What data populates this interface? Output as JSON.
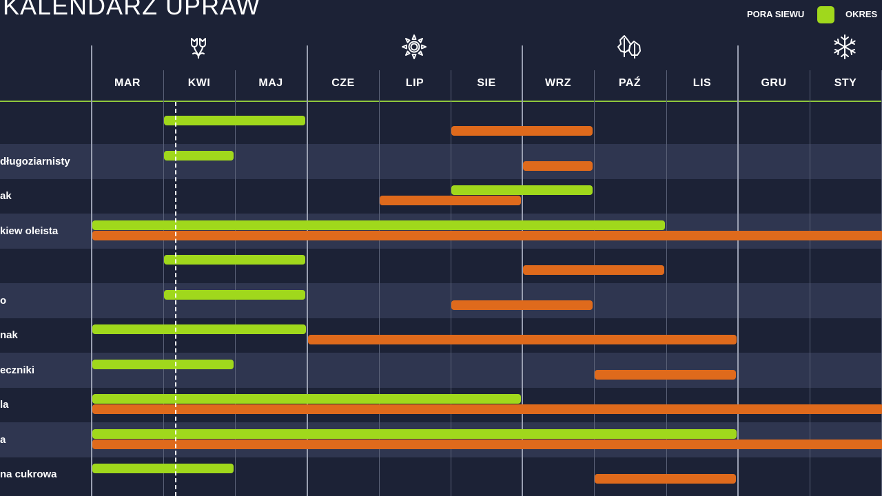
{
  "title": "KALENDARZ UPRAW",
  "legend": [
    {
      "label": "PORA SIEWU",
      "color": "#a0d81c"
    },
    {
      "label": "OKRES",
      "color": "#df6a1c"
    }
  ],
  "colors": {
    "background": "#1c2236",
    "row_alt": "#2f3650",
    "sowing": "#a0d81c",
    "harvest": "#df6a1c",
    "header_line": "#8fc83c"
  },
  "seasons": [
    {
      "icon": "flower-icon"
    },
    {
      "icon": "sun-icon"
    },
    {
      "icon": "leaves-icon"
    },
    {
      "icon": "snowflake-icon"
    }
  ],
  "months": [
    "MAR",
    "KWI",
    "MAJ",
    "CZE",
    "LIP",
    "SIE",
    "WRZ",
    "PAŹ",
    "LIS",
    "GRU",
    "STY"
  ],
  "crops": [
    {
      "label": "",
      "sowing": [
        "KWI",
        "MAJ"
      ],
      "harvest": [
        "SIE",
        "WRZ"
      ]
    },
    {
      "label": "długoziarnisty",
      "sowing": [
        "KWI",
        "KWI"
      ],
      "harvest": [
        "WRZ",
        "WRZ"
      ]
    },
    {
      "label": "ak",
      "sowing": [
        "SIE",
        "WRZ"
      ],
      "harvest": [
        "LIP",
        "SIE"
      ]
    },
    {
      "label": "kiew oleista",
      "sowing": [
        "MAR",
        "PAŹ"
      ],
      "harvest": [
        "MAR",
        "STY"
      ]
    },
    {
      "label": "",
      "sowing": [
        "KWI",
        "MAJ"
      ],
      "harvest": [
        "WRZ",
        "PAŹ"
      ]
    },
    {
      "label": "o",
      "sowing": [
        "KWI",
        "MAJ"
      ],
      "harvest": [
        "SIE",
        "WRZ"
      ]
    },
    {
      "label": "nak",
      "sowing": [
        "MAR",
        "MAJ"
      ],
      "harvest": [
        "CZE",
        "LIS"
      ]
    },
    {
      "label": "eczniki",
      "sowing": [
        "MAR",
        "KWI"
      ],
      "harvest": [
        "PAŹ",
        "LIS"
      ]
    },
    {
      "label": "la",
      "sowing": [
        "MAR",
        "SIE"
      ],
      "harvest": [
        "MAR",
        "STY"
      ]
    },
    {
      "label": "a",
      "sowing": [
        "MAR",
        "LIS"
      ],
      "harvest": [
        "MAR",
        "STY"
      ]
    },
    {
      "label": "na cukrowa",
      "sowing": [
        "MAR",
        "KWI"
      ],
      "harvest": [
        "PAŹ",
        "LIS"
      ]
    }
  ]
}
